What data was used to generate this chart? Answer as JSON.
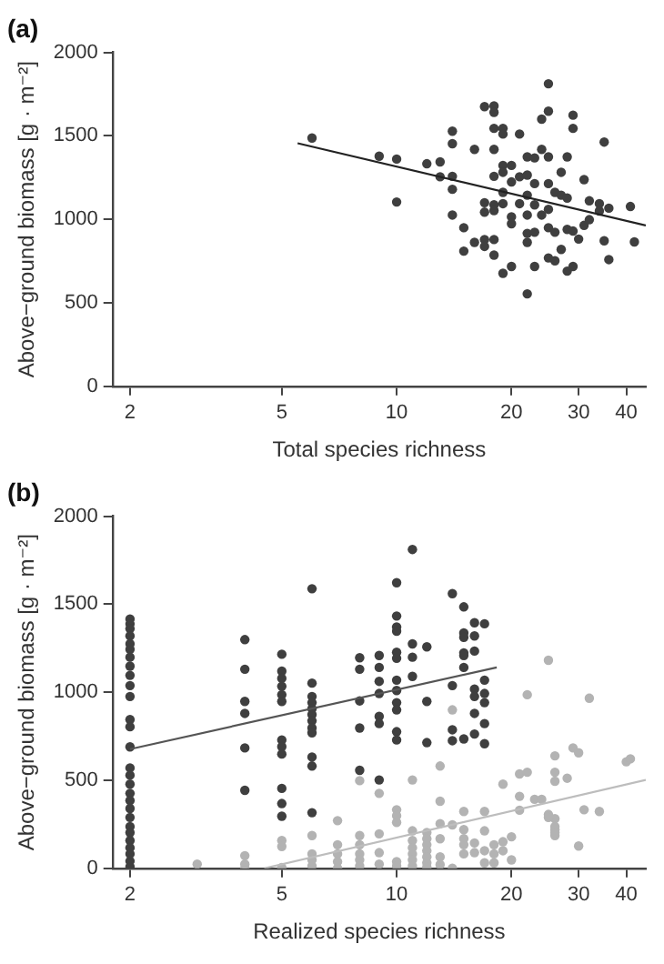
{
  "chart_data": [
    {
      "type": "scatter",
      "title": "(a)",
      "xlabel": "Total species richness",
      "ylabel": "Above−ground biomass [g · m⁻²]",
      "log": "x",
      "xlim": [
        1.8,
        45
      ],
      "xticks": [
        2,
        5,
        10,
        20,
        30,
        40
      ],
      "ylim": [
        0,
        2000
      ],
      "yticks": [
        0,
        500,
        1000,
        1500,
        2000
      ],
      "grid": false,
      "legend": false,
      "marker": "circle",
      "series": [
        {
          "color": "#3f3f3f",
          "x": [
            6,
            9,
            10,
            10,
            12,
            13,
            13,
            14,
            14,
            14,
            14,
            14,
            15,
            15,
            16,
            16,
            17,
            17,
            17,
            17,
            17,
            18,
            18,
            18,
            18,
            18,
            18,
            18,
            18,
            18,
            19,
            19,
            19,
            19,
            19,
            19,
            19,
            20,
            20,
            20,
            20,
            20,
            21,
            21,
            21,
            22,
            22,
            22,
            22,
            22,
            22,
            22,
            23,
            23,
            23,
            23,
            23,
            24,
            24,
            24,
            25,
            25,
            25,
            25,
            25,
            25,
            25,
            26,
            26,
            26,
            27,
            27,
            27,
            28,
            28,
            28,
            28,
            29,
            29,
            29,
            29,
            30,
            31,
            31,
            32,
            32,
            34,
            34,
            35,
            35,
            36,
            36,
            41,
            42
          ],
          "values": [
            1487,
            1378,
            1361,
            1104,
            1333,
            1344,
            1255,
            1528,
            1453,
            1258,
            1180,
            1026,
            950,
            810,
            1419,
            862,
            1675,
            1100,
            1043,
            879,
            838,
            1679,
            1641,
            1545,
            1419,
            1258,
            1087,
            1053,
            879,
            786,
            1545,
            1511,
            1323,
            1282,
            1162,
            1094,
            677,
            1323,
            1224,
            1015,
            974,
            718,
            1511,
            1255,
            1094,
            1265,
            1374,
            1145,
            1026,
            916,
            862,
            554,
            1368,
            1214,
            923,
            718,
            1087,
            1600,
            1419,
            1026,
            1812,
            1648,
            1374,
            1214,
            1060,
            950,
            769,
            1162,
            923,
            752,
            1282,
            1145,
            820,
            1374,
            1128,
            940,
            690,
            1624,
            1545,
            930,
            718,
            882,
            1238,
            964,
            1111,
            998,
            1094,
            1050,
            1463,
            872,
            759,
            1067,
            1077,
            865
          ]
        },
        {
          "type": "line",
          "marker": "none",
          "color": "#222222",
          "x": [
            5.5,
            45
          ],
          "values": [
            1456,
            964
          ]
        }
      ]
    },
    {
      "type": "scatter",
      "title": "(b)",
      "xlabel": "Realized species richness",
      "ylabel": "Above−ground biomass [g · m⁻²]",
      "log": "x",
      "xlim": [
        1.8,
        45
      ],
      "xticks": [
        2,
        5,
        10,
        20,
        30,
        40
      ],
      "ylim": [
        0,
        2000
      ],
      "yticks": [
        0,
        500,
        1000,
        1500,
        2000
      ],
      "grid": false,
      "legend": false,
      "marker": "circle",
      "series": [
        {
          "color": "#b3b3b3",
          "x": [
            3,
            4,
            4,
            4,
            5,
            5,
            5,
            6,
            6,
            6,
            6,
            7,
            7,
            7,
            7,
            7,
            8,
            8,
            8,
            8,
            8,
            9,
            9,
            9,
            10,
            10,
            10,
            10,
            10,
            11,
            11,
            11,
            11,
            11,
            11,
            12,
            12,
            12,
            12,
            12,
            12,
            12,
            13,
            13,
            13,
            13,
            14,
            14,
            15,
            15,
            15,
            15,
            15,
            16,
            16,
            17,
            17,
            17,
            17,
            18,
            18,
            18,
            19,
            19,
            20,
            20,
            21,
            25,
            26,
            26,
            26,
            30,
            31,
            34,
            8,
            9,
            11,
            13,
            14,
            13,
            19,
            21,
            21,
            22,
            22,
            23,
            24,
            25,
            25,
            26,
            26,
            26,
            26,
            26,
            28,
            29,
            30,
            32,
            40,
            41
          ],
          "values": [
            24,
            72,
            24,
            0,
            158,
            124,
            5,
            186,
            82,
            48,
            14,
            271,
            134,
            82,
            38,
            0,
            186,
            134,
            82,
            48,
            14,
            196,
            89,
            24,
            333,
            299,
            261,
            38,
            14,
            213,
            158,
            117,
            82,
            48,
            14,
            203,
            168,
            134,
            100,
            65,
            31,
            7,
            254,
            168,
            65,
            21,
            247,
            0,
            323,
            220,
            168,
            134,
            82,
            144,
            89,
            323,
            213,
            100,
            31,
            134,
            82,
            31,
            151,
            100,
            179,
            48,
            330,
            306,
            282,
            220,
            186,
            127,
            333,
            323,
            498,
            426,
            502,
            581,
            900,
            381,
            478,
            409,
            536,
            546,
            986,
            392,
            392,
            1182,
            289,
            639,
            546,
            495,
            237,
            203,
            512,
            684,
            656,
            966,
            605,
            622
          ]
        },
        {
          "color": "#3f3f3f",
          "x": [
            2,
            2,
            2,
            2,
            2,
            2,
            2,
            2,
            2,
            2,
            2,
            2,
            2,
            2,
            2,
            2,
            2,
            2,
            2,
            2,
            2,
            2,
            2,
            2,
            2,
            2,
            2,
            2,
            4,
            4,
            4,
            4,
            4,
            4,
            5,
            5,
            5,
            5,
            5,
            5,
            5,
            5,
            5,
            5,
            5,
            5,
            6,
            6,
            6,
            6,
            6,
            6,
            6,
            6,
            6,
            6,
            6,
            6,
            8,
            8,
            8,
            8,
            8,
            9,
            9,
            9,
            9,
            9,
            9,
            9,
            10,
            10,
            10,
            10,
            10,
            10,
            10,
            10,
            10,
            10,
            10,
            10,
            11,
            11,
            11,
            11,
            12,
            12,
            12,
            14,
            14,
            14,
            14,
            15,
            15,
            15,
            15,
            15,
            15,
            15,
            16,
            16,
            16,
            16,
            16,
            16,
            16,
            17,
            17,
            17,
            17,
            17,
            17
          ],
          "values": [
            1416,
            1388,
            1361,
            1320,
            1275,
            1244,
            1199,
            1148,
            1096,
            1038,
            976,
            845,
            804,
            690,
            570,
            529,
            478,
            426,
            385,
            340,
            289,
            237,
            203,
            158,
            117,
            82,
            41,
            10,
            1299,
            1131,
            948,
            880,
            684,
            443,
            1216,
            1120,
            1079,
            1034,
            986,
            948,
            729,
            691,
            649,
            454,
            368,
            296,
            1588,
            1052,
            976,
            941,
            907,
            873,
            838,
            797,
            770,
            632,
            581,
            316,
            1196,
            1131,
            951,
            797,
            557,
            1209,
            1141,
            1062,
            993,
            863,
            822,
            502,
            1622,
            1433,
            1371,
            1347,
            1227,
            1193,
            1069,
            1010,
            941,
            900,
            776,
            729,
            1811,
            1275,
            1199,
            1090,
            1258,
            948,
            714,
            1560,
            1038,
            787,
            725,
            1485,
            1337,
            1312,
            1224,
            1209,
            1141,
            735,
            1395,
            1320,
            1234,
            1018,
            976,
            880,
            763,
            1389,
            1069,
            993,
            941,
            822,
            708
          ]
        },
        {
          "type": "line",
          "marker": "none",
          "color": "#555555",
          "x": [
            2,
            18.3
          ],
          "values": [
            677,
            1141
          ]
        },
        {
          "type": "line",
          "marker": "none",
          "color": "#bdbdbd",
          "x": [
            4.5,
            45
          ],
          "values": [
            0,
            502
          ]
        }
      ]
    }
  ]
}
